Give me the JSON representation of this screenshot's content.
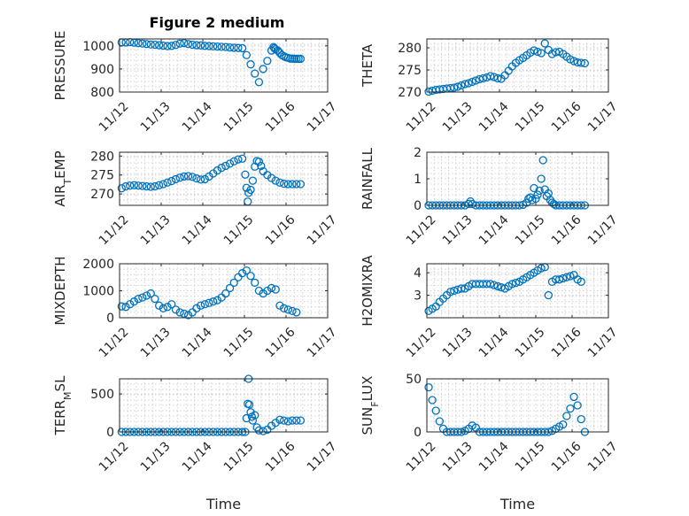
{
  "figure_title": "Figure 2 medium",
  "colors": {
    "marker": "#0072BD",
    "axis": "#262626",
    "grid": "#d0d0d0"
  },
  "chart_data": [
    {
      "type": "scatter",
      "ylabel": "PRESSURE",
      "title": "Figure 2 medium",
      "xlim": [
        0,
        5
      ],
      "ylim": [
        800,
        1030
      ],
      "yticks": [
        800,
        900,
        1000
      ],
      "xtick_labels": [
        "11/12",
        "11/13",
        "11/14",
        "11/15",
        "11/16",
        "11/17"
      ],
      "x": [
        0.05,
        0.15,
        0.25,
        0.35,
        0.45,
        0.55,
        0.65,
        0.75,
        0.85,
        0.95,
        1.05,
        1.15,
        1.25,
        1.35,
        1.45,
        1.55,
        1.65,
        1.75,
        1.85,
        1.95,
        2.05,
        2.15,
        2.25,
        2.35,
        2.45,
        2.55,
        2.65,
        2.75,
        2.85,
        2.95,
        3.05,
        3.15,
        3.25,
        3.35,
        3.45,
        3.55,
        3.65,
        3.7,
        3.72,
        3.75,
        3.8,
        3.85,
        3.9,
        3.95,
        4.0,
        4.05,
        4.1,
        4.15,
        4.2,
        4.25,
        4.3,
        4.35
      ],
      "y": [
        1015,
        1015,
        1016,
        1014,
        1012,
        1010,
        1008,
        1006,
        1005,
        1003,
        1001,
        999,
        1000,
        1004,
        1010,
        1012,
        1008,
        1005,
        1003,
        1002,
        1000,
        999,
        998,
        997,
        996,
        995,
        993,
        992,
        991,
        990,
        960,
        920,
        880,
        843,
        900,
        935,
        980,
        995,
        990,
        985,
        980,
        970,
        960,
        955,
        950,
        948,
        945,
        945,
        944,
        944,
        944,
        944
      ]
    },
    {
      "type": "scatter",
      "ylabel": "THETA",
      "xlim": [
        0,
        5
      ],
      "ylim": [
        270,
        282
      ],
      "yticks": [
        270,
        275,
        280
      ],
      "xtick_labels": [
        "11/12",
        "11/13",
        "11/14",
        "11/15",
        "11/16",
        "11/17"
      ],
      "x": [
        0.05,
        0.15,
        0.25,
        0.35,
        0.45,
        0.55,
        0.65,
        0.75,
        0.85,
        0.95,
        1.05,
        1.15,
        1.25,
        1.35,
        1.45,
        1.55,
        1.65,
        1.75,
        1.85,
        1.95,
        2.05,
        2.15,
        2.25,
        2.35,
        2.45,
        2.55,
        2.65,
        2.75,
        2.85,
        2.95,
        3.05,
        3.15,
        3.25,
        3.35,
        3.45,
        3.55,
        3.65,
        3.75,
        3.85,
        3.95,
        4.05,
        4.15,
        4.25,
        4.35
      ],
      "y": [
        270.1,
        270.3,
        270.5,
        270.6,
        270.7,
        270.8,
        270.9,
        271.0,
        271.2,
        271.5,
        271.8,
        272.0,
        272.3,
        272.6,
        272.9,
        273.1,
        273.3,
        273.6,
        273.4,
        273.1,
        273.0,
        273.8,
        274.8,
        275.8,
        276.6,
        277.2,
        277.7,
        278.3,
        278.9,
        279.4,
        279.1,
        278.8,
        281.0,
        279.5,
        278.6,
        279.0,
        279.1,
        278.6,
        278.0,
        277.4,
        277.0,
        276.7,
        276.6,
        276.5
      ]
    },
    {
      "type": "scatter",
      "ylabel": "AIR_TEMP",
      "xlim": [
        0,
        5
      ],
      "ylim": [
        267,
        281
      ],
      "yticks": [
        270,
        275,
        280
      ],
      "xtick_labels": [
        "11/12",
        "11/13",
        "11/14",
        "11/15",
        "11/16",
        "11/17"
      ],
      "x": [
        0.05,
        0.15,
        0.25,
        0.35,
        0.45,
        0.55,
        0.65,
        0.75,
        0.85,
        0.95,
        1.05,
        1.15,
        1.25,
        1.35,
        1.45,
        1.55,
        1.65,
        1.75,
        1.85,
        1.95,
        2.05,
        2.15,
        2.25,
        2.35,
        2.45,
        2.55,
        2.65,
        2.75,
        2.85,
        2.95,
        3.02,
        3.05,
        3.08,
        3.1,
        3.15,
        3.2,
        3.25,
        3.3,
        3.35,
        3.4,
        3.45,
        3.55,
        3.65,
        3.75,
        3.85,
        3.95,
        4.05,
        4.15,
        4.25,
        4.35
      ],
      "y": [
        271.5,
        272.0,
        272.2,
        272.3,
        272.2,
        272.1,
        272.0,
        271.9,
        272.0,
        272.3,
        272.6,
        273.0,
        273.4,
        273.9,
        274.3,
        274.6,
        274.7,
        274.5,
        274.1,
        273.8,
        273.9,
        274.6,
        275.4,
        276.2,
        276.9,
        277.4,
        278.0,
        278.6,
        279.1,
        279.3,
        275.1,
        271.6,
        268.0,
        270.3,
        271.1,
        273.5,
        277.2,
        278.7,
        278.5,
        277.4,
        276.0,
        275.0,
        274.2,
        273.5,
        273.0,
        272.7,
        272.6,
        272.6,
        272.6,
        272.6
      ]
    },
    {
      "type": "scatter",
      "ylabel": "RAINFALL",
      "xlim": [
        0,
        5
      ],
      "ylim": [
        0,
        2
      ],
      "yticks": [
        0,
        1,
        2
      ],
      "xtick_labels": [
        "11/12",
        "11/13",
        "11/14",
        "11/15",
        "11/16",
        "11/17"
      ],
      "x": [
        0.05,
        0.15,
        0.25,
        0.35,
        0.45,
        0.55,
        0.65,
        0.75,
        0.85,
        0.95,
        1.05,
        1.15,
        1.2,
        1.25,
        1.35,
        1.45,
        1.55,
        1.65,
        1.75,
        1.85,
        1.95,
        2.05,
        2.15,
        2.25,
        2.35,
        2.45,
        2.55,
        2.65,
        2.75,
        2.8,
        2.85,
        2.9,
        2.95,
        3.0,
        3.05,
        3.1,
        3.15,
        3.2,
        3.25,
        3.3,
        3.35,
        3.4,
        3.45,
        3.5,
        3.55,
        3.65,
        3.75,
        3.85,
        3.95,
        4.05,
        4.15,
        4.25,
        4.35
      ],
      "y": [
        0,
        0,
        0,
        0,
        0,
        0,
        0,
        0,
        0,
        0,
        0,
        0.05,
        0.15,
        0.05,
        0,
        0,
        0,
        0,
        0,
        0,
        0,
        0,
        0,
        0,
        0,
        0,
        0,
        0.02,
        0.1,
        0.25,
        0.3,
        0.2,
        0.65,
        0.25,
        0.4,
        0.55,
        1.0,
        1.7,
        0.6,
        0.35,
        0.45,
        0.2,
        0.1,
        0.05,
        0,
        0,
        0,
        0,
        0,
        0,
        0,
        0,
        0
      ]
    },
    {
      "type": "scatter",
      "ylabel": "MIXDEPTH",
      "xlim": [
        0,
        5
      ],
      "ylim": [
        0,
        2000
      ],
      "yticks": [
        0,
        1000,
        2000
      ],
      "xtick_labels": [
        "11/12",
        "11/13",
        "11/14",
        "11/15",
        "11/16",
        "11/17"
      ],
      "x": [
        0.05,
        0.15,
        0.25,
        0.35,
        0.45,
        0.55,
        0.65,
        0.75,
        0.85,
        0.95,
        1.05,
        1.15,
        1.25,
        1.35,
        1.45,
        1.55,
        1.65,
        1.75,
        1.85,
        1.95,
        2.05,
        2.15,
        2.25,
        2.35,
        2.45,
        2.55,
        2.65,
        2.75,
        2.85,
        2.95,
        3.05,
        3.15,
        3.25,
        3.35,
        3.45,
        3.55,
        3.65,
        3.75,
        3.85,
        3.95,
        4.05,
        4.15,
        4.25
      ],
      "y": [
        420,
        400,
        500,
        600,
        700,
        750,
        820,
        900,
        700,
        450,
        350,
        400,
        500,
        300,
        200,
        150,
        100,
        200,
        350,
        450,
        500,
        550,
        600,
        650,
        750,
        900,
        1100,
        1300,
        1500,
        1650,
        1750,
        1550,
        1300,
        1000,
        900,
        1000,
        1100,
        1050,
        450,
        350,
        300,
        250,
        200
      ]
    },
    {
      "type": "scatter",
      "ylabel": "H2OMIXRA",
      "xlim": [
        0,
        5
      ],
      "ylim": [
        2,
        4.4
      ],
      "yticks": [
        3,
        4
      ],
      "xtick_labels": [
        "11/12",
        "11/13",
        "11/14",
        "11/15",
        "11/16",
        "11/17"
      ],
      "x": [
        0.05,
        0.15,
        0.25,
        0.35,
        0.45,
        0.55,
        0.65,
        0.75,
        0.85,
        0.95,
        1.05,
        1.15,
        1.25,
        1.35,
        1.45,
        1.55,
        1.65,
        1.75,
        1.85,
        1.95,
        2.05,
        2.15,
        2.25,
        2.35,
        2.45,
        2.55,
        2.65,
        2.75,
        2.85,
        2.95,
        3.05,
        3.15,
        3.25,
        3.35,
        3.45,
        3.55,
        3.65,
        3.75,
        3.85,
        3.95,
        4.05,
        4.15,
        4.25
      ],
      "y": [
        2.3,
        2.4,
        2.5,
        2.7,
        2.85,
        3.0,
        3.15,
        3.2,
        3.25,
        3.3,
        3.3,
        3.4,
        3.5,
        3.5,
        3.5,
        3.5,
        3.5,
        3.5,
        3.45,
        3.4,
        3.35,
        3.3,
        3.4,
        3.5,
        3.55,
        3.6,
        3.7,
        3.8,
        3.9,
        4.0,
        4.1,
        4.2,
        4.25,
        3.0,
        3.6,
        3.7,
        3.7,
        3.75,
        3.8,
        3.85,
        3.9,
        3.7,
        3.6
      ]
    },
    {
      "type": "scatter",
      "ylabel": "TERR_MSL",
      "xlim": [
        0,
        5
      ],
      "ylim": [
        0,
        700
      ],
      "yticks": [
        0,
        500
      ],
      "xtick_labels": [
        "11/12",
        "11/13",
        "11/14",
        "11/15",
        "11/16",
        "11/17"
      ],
      "x": [
        0.05,
        0.15,
        0.25,
        0.35,
        0.45,
        0.55,
        0.65,
        0.75,
        0.85,
        0.95,
        1.05,
        1.15,
        1.25,
        1.35,
        1.45,
        1.55,
        1.65,
        1.75,
        1.85,
        1.95,
        2.05,
        2.15,
        2.25,
        2.35,
        2.45,
        2.55,
        2.65,
        2.75,
        2.85,
        2.95,
        3.02,
        3.05,
        3.08,
        3.1,
        3.12,
        3.15,
        3.18,
        3.2,
        3.25,
        3.3,
        3.35,
        3.45,
        3.55,
        3.65,
        3.75,
        3.85,
        3.95,
        4.05,
        4.15,
        4.25,
        4.35
      ],
      "y": [
        0,
        0,
        0,
        0,
        0,
        0,
        0,
        0,
        0,
        0,
        0,
        0,
        0,
        0,
        0,
        0,
        0,
        0,
        0,
        0,
        0,
        0,
        0,
        0,
        0,
        0,
        0,
        0,
        0,
        0,
        0,
        180,
        370,
        700,
        360,
        260,
        200,
        150,
        220,
        60,
        20,
        10,
        30,
        80,
        120,
        160,
        150,
        140,
        150,
        150,
        150
      ]
    },
    {
      "type": "scatter",
      "ylabel": "SUN_FLUX",
      "xlim": [
        0,
        5
      ],
      "ylim": [
        0,
        50
      ],
      "yticks": [
        0,
        50
      ],
      "xtick_labels": [
        "11/12",
        "11/13",
        "11/14",
        "11/15",
        "11/16",
        "11/17"
      ],
      "x": [
        0.05,
        0.15,
        0.25,
        0.35,
        0.45,
        0.55,
        0.65,
        0.75,
        0.85,
        0.95,
        1.05,
        1.15,
        1.25,
        1.35,
        1.45,
        1.55,
        1.65,
        1.75,
        1.85,
        1.95,
        2.05,
        2.15,
        2.25,
        2.35,
        2.45,
        2.55,
        2.65,
        2.75,
        2.85,
        2.95,
        3.05,
        3.15,
        3.25,
        3.35,
        3.45,
        3.55,
        3.65,
        3.75,
        3.85,
        3.95,
        4.05,
        4.15,
        4.25,
        4.35
      ],
      "y": [
        42,
        30,
        20,
        10,
        3,
        0,
        0,
        0,
        0,
        0,
        1,
        3,
        6,
        4,
        0,
        0,
        0,
        0,
        0,
        0,
        0,
        0,
        0,
        0,
        0,
        0,
        0,
        0,
        0,
        0,
        0,
        0,
        0,
        0,
        1,
        3,
        5,
        7,
        15,
        22,
        33,
        25,
        12,
        0
      ]
    }
  ]
}
